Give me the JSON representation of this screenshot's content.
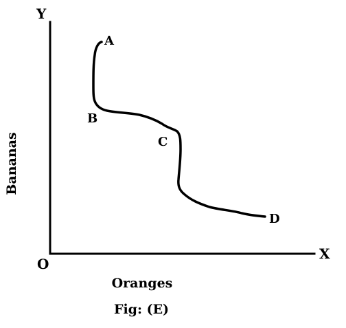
{
  "axes": {
    "origin_label": "O",
    "x_end_label": "X",
    "y_end_label": "Y",
    "x_title": "Oranges",
    "y_title": "Bananas"
  },
  "points": {
    "a": "A",
    "b": "B",
    "c": "C",
    "d": "D"
  },
  "caption": "Fig: (E)"
}
